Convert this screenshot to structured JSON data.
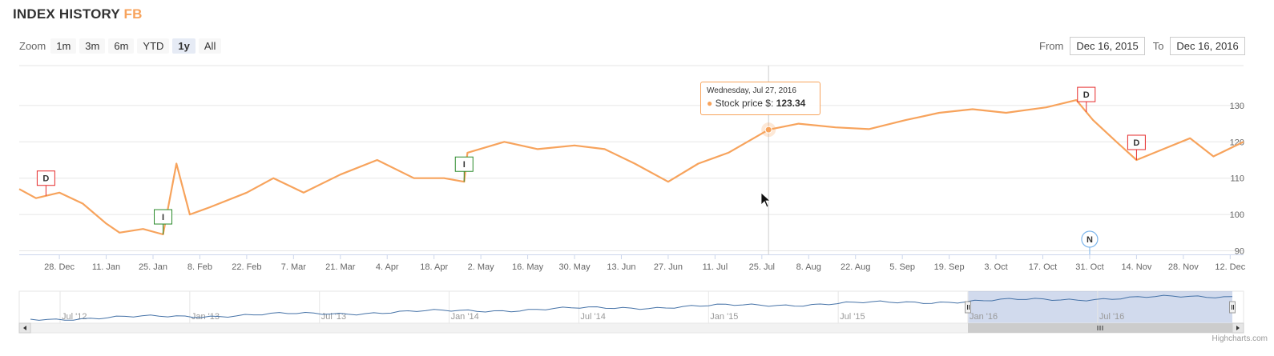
{
  "title": {
    "main": "INDEX HISTORY",
    "symbol": "FB"
  },
  "zoom": {
    "label": "Zoom",
    "buttons": [
      "1m",
      "3m",
      "6m",
      "YTD",
      "1y",
      "All"
    ],
    "active": "1y"
  },
  "range": {
    "from_label": "From",
    "from_value": "Dec 16, 2015",
    "to_label": "To",
    "to_value": "Dec 16, 2016"
  },
  "tooltip": {
    "date": "Wednesday, Jul 27, 2016",
    "series": "Stock price $:",
    "value": "123.34"
  },
  "credit": "Highcharts.com",
  "colors": {
    "series": "#f7a35c",
    "navigator": "#4572a7",
    "flag_down": "#e52b2b",
    "flag_up": "#2b8a2b",
    "flag_news": "#7cb5ec"
  },
  "chart_data": {
    "type": "line",
    "series": [
      {
        "name": "Stock price $",
        "x": [
          "2015-12-16",
          "2015-12-21",
          "2015-12-28",
          "2016-01-04",
          "2016-01-11",
          "2016-01-15",
          "2016-01-22",
          "2016-01-28",
          "2016-02-01",
          "2016-02-05",
          "2016-02-11",
          "2016-02-22",
          "2016-03-01",
          "2016-03-10",
          "2016-03-21",
          "2016-04-01",
          "2016-04-12",
          "2016-04-21",
          "2016-04-27",
          "2016-04-28",
          "2016-05-09",
          "2016-05-19",
          "2016-05-30",
          "2016-06-08",
          "2016-06-17",
          "2016-06-27",
          "2016-07-06",
          "2016-07-15",
          "2016-07-27",
          "2016-08-05",
          "2016-08-16",
          "2016-08-26",
          "2016-09-06",
          "2016-09-16",
          "2016-09-26",
          "2016-10-06",
          "2016-10-18",
          "2016-10-27",
          "2016-11-01",
          "2016-11-08",
          "2016-11-14",
          "2016-11-22",
          "2016-11-30",
          "2016-12-07",
          "2016-12-16"
        ],
        "values": [
          107,
          104.5,
          106,
          103,
          97.5,
          95,
          96,
          94.5,
          114,
          100,
          102,
          106,
          110,
          106,
          111,
          115,
          110,
          110,
          109,
          117,
          120,
          118,
          119,
          118,
          114,
          109,
          114,
          117,
          123.34,
          125,
          124,
          123.5,
          126,
          128,
          129,
          128,
          129.5,
          131.5,
          126,
          120,
          115,
          118,
          121,
          116,
          120
        ]
      }
    ],
    "y_ticks": [
      90,
      100,
      110,
      120,
      130
    ],
    "ylim": [
      89,
      141
    ],
    "x_ticks": [
      {
        "label": "28. Dec",
        "date": "2015-12-28"
      },
      {
        "label": "11. Jan",
        "date": "2016-01-11"
      },
      {
        "label": "25. Jan",
        "date": "2016-01-25"
      },
      {
        "label": "8. Feb",
        "date": "2016-02-08"
      },
      {
        "label": "22. Feb",
        "date": "2016-02-22"
      },
      {
        "label": "7. Mar",
        "date": "2016-03-07"
      },
      {
        "label": "21. Mar",
        "date": "2016-03-21"
      },
      {
        "label": "4. Apr",
        "date": "2016-04-04"
      },
      {
        "label": "18. Apr",
        "date": "2016-04-18"
      },
      {
        "label": "2. May",
        "date": "2016-05-02"
      },
      {
        "label": "16. May",
        "date": "2016-05-16"
      },
      {
        "label": "30. May",
        "date": "2016-05-30"
      },
      {
        "label": "13. Jun",
        "date": "2016-06-13"
      },
      {
        "label": "27. Jun",
        "date": "2016-06-27"
      },
      {
        "label": "11. Jul",
        "date": "2016-07-11"
      },
      {
        "label": "25. Jul",
        "date": "2016-07-25"
      },
      {
        "label": "8. Aug",
        "date": "2016-08-08"
      },
      {
        "label": "22. Aug",
        "date": "2016-08-22"
      },
      {
        "label": "5. Sep",
        "date": "2016-09-05"
      },
      {
        "label": "19. Sep",
        "date": "2016-09-19"
      },
      {
        "label": "3. Oct",
        "date": "2016-10-03"
      },
      {
        "label": "17. Oct",
        "date": "2016-10-17"
      },
      {
        "label": "31. Oct",
        "date": "2016-10-31"
      },
      {
        "label": "14. Nov",
        "date": "2016-11-14"
      },
      {
        "label": "28. Nov",
        "date": "2016-11-28"
      },
      {
        "label": "12. Dec",
        "date": "2016-12-12"
      }
    ],
    "flags": [
      {
        "text": "D",
        "date": "2015-12-24",
        "kind": "down"
      },
      {
        "text": "I",
        "date": "2016-01-28",
        "kind": "up"
      },
      {
        "text": "I",
        "date": "2016-04-27",
        "kind": "up"
      },
      {
        "text": "D",
        "date": "2016-10-30",
        "kind": "down"
      },
      {
        "text": "D",
        "date": "2016-11-14",
        "kind": "down"
      },
      {
        "text": "N",
        "date": "2016-10-31",
        "kind": "news"
      }
    ],
    "highlight": {
      "date": "2016-07-27",
      "value": 123.34
    },
    "navigator": {
      "x_ticks": [
        "Jul '12",
        "Jan '13",
        "Jul '13",
        "Jan '14",
        "Jul '14",
        "Jan '15",
        "Jul '15",
        "Jan '16",
        "Jul '16"
      ]
    }
  }
}
